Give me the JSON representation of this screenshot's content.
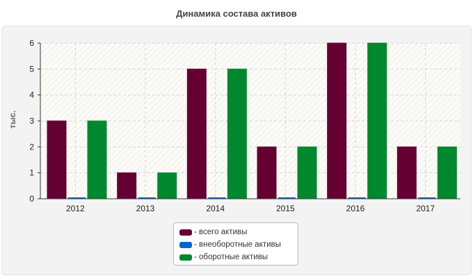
{
  "chart_data": {
    "type": "bar",
    "title": "Динамика состава активов",
    "ylabel": "тыс.",
    "xlabel": "",
    "ylim": [
      0,
      6
    ],
    "yticks": [
      0,
      1,
      2,
      3,
      4,
      5,
      6
    ],
    "grid": true,
    "legend_position": "bottom",
    "categories": [
      "2012",
      "2013",
      "2014",
      "2015",
      "2016",
      "2017"
    ],
    "series": [
      {
        "name": "всего активы",
        "color": "#660033",
        "values": [
          3,
          1,
          5,
          2,
          6,
          2
        ]
      },
      {
        "name": "внеоборотные активы",
        "color": "#0066cc",
        "values": [
          0,
          0,
          0,
          0,
          0,
          0
        ]
      },
      {
        "name": "оборотные активы",
        "color": "#00882e",
        "values": [
          3,
          1,
          5,
          2,
          6,
          2
        ]
      }
    ]
  },
  "legend": {
    "items": [
      {
        "label": "- всего активы"
      },
      {
        "label": "- внеоборотные активы"
      },
      {
        "label": "- оборотные активы"
      }
    ]
  }
}
